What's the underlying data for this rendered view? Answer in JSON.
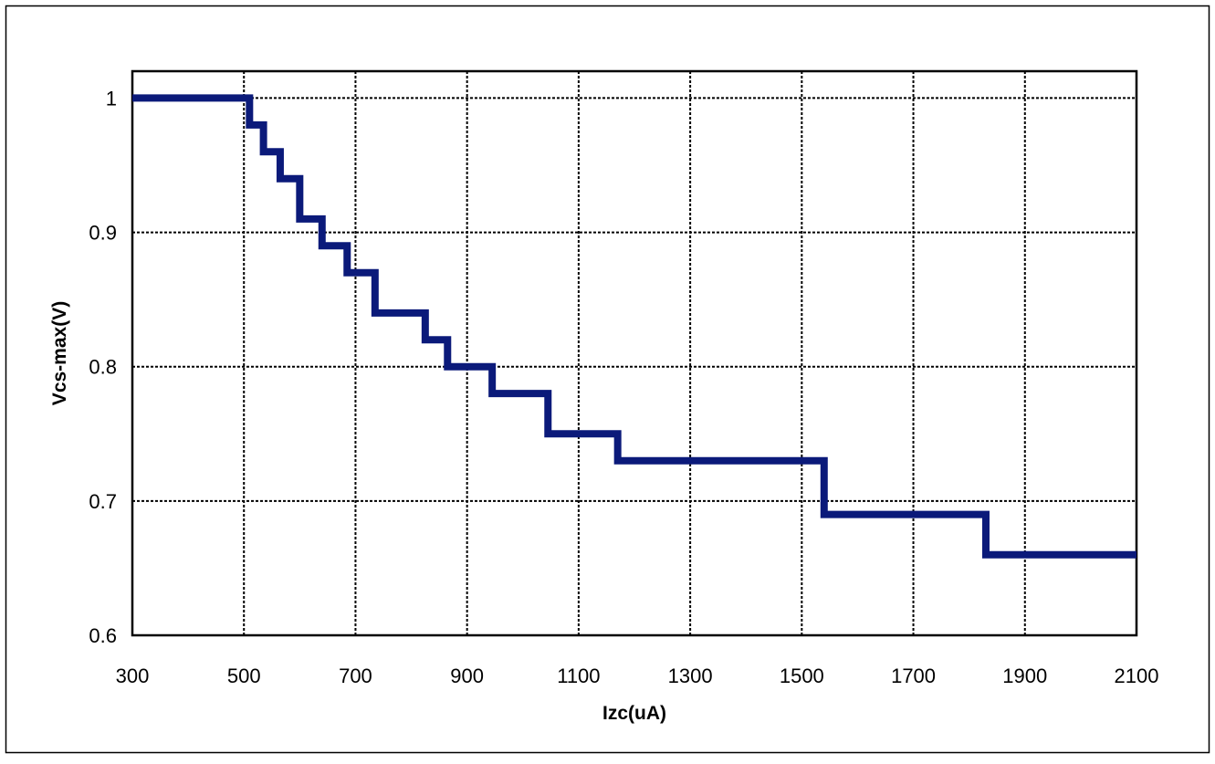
{
  "chart_data": {
    "type": "line",
    "step": true,
    "xlabel": "Izc(uA)",
    "ylabel": "Vcs-max(V)",
    "xlim": [
      300,
      2100
    ],
    "ylim": [
      0.6,
      1.02
    ],
    "x_ticks": [
      300,
      500,
      700,
      900,
      1100,
      1300,
      1500,
      1700,
      1900,
      2100
    ],
    "x_tick_labels": [
      "300",
      "500",
      "700",
      "900",
      "1100",
      "1300",
      "1500",
      "1700",
      "1900",
      "2100"
    ],
    "y_ticks": [
      0.6,
      0.7,
      0.8,
      0.9,
      1.0
    ],
    "y_tick_labels": [
      "0.6",
      "0.7",
      "0.8",
      "0.9",
      "1"
    ],
    "grid": true,
    "series": [
      {
        "color": "#0B1A7A",
        "x": [
          300,
          510,
          535,
          565,
          600,
          640,
          685,
          735,
          825,
          865,
          945,
          1045,
          1170,
          1540,
          1830,
          2100
        ],
        "y": [
          1.0,
          0.98,
          0.96,
          0.94,
          0.91,
          0.89,
          0.87,
          0.84,
          0.82,
          0.8,
          0.78,
          0.75,
          0.73,
          0.69,
          0.66,
          0.66
        ]
      }
    ]
  }
}
